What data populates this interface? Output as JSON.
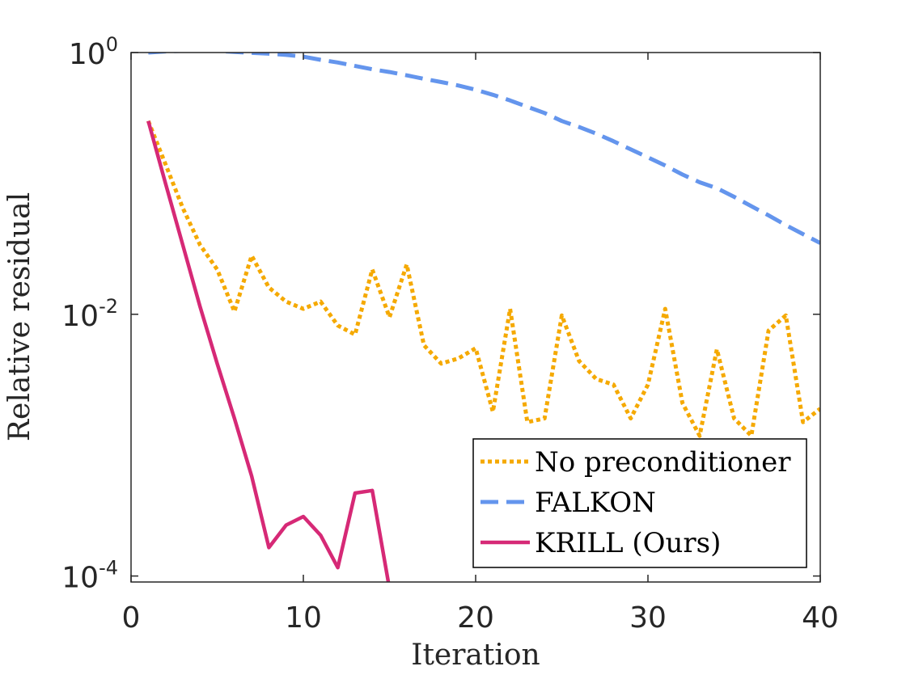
{
  "chart_data": {
    "type": "line",
    "title": "",
    "xlabel": "Iteration",
    "ylabel": "Relative residual",
    "xlim": [
      0,
      40
    ],
    "ylim": [
      9e-05,
      1.0
    ],
    "y_scale": "log",
    "grid": false,
    "legend_position": "bottom-right",
    "x_ticks": [
      0,
      10,
      20,
      30,
      40
    ],
    "x_tick_labels": [
      "0",
      "10",
      "20",
      "30",
      "40"
    ],
    "y_ticks": [
      0.0001,
      0.01,
      1
    ],
    "y_tick_labels": [
      {
        "base": "10",
        "exp": "-4"
      },
      {
        "base": "10",
        "exp": "-2"
      },
      {
        "base": "10",
        "exp": "0"
      }
    ],
    "series": [
      {
        "name": "No preconditioner",
        "color": "#f5a900",
        "style": "dotted",
        "x": [
          1,
          2,
          3,
          4,
          5,
          6,
          7,
          8,
          9,
          10,
          11,
          12,
          13,
          14,
          15,
          16,
          17,
          18,
          19,
          20,
          21,
          22,
          23,
          24,
          25,
          26,
          27,
          28,
          29,
          30,
          31,
          32,
          33,
          34,
          35,
          36,
          37,
          38,
          39,
          40
        ],
        "y": [
          0.3,
          0.14,
          0.065,
          0.034,
          0.022,
          0.0105,
          0.028,
          0.016,
          0.0125,
          0.011,
          0.0125,
          0.0082,
          0.007,
          0.022,
          0.0095,
          0.024,
          0.0058,
          0.0042,
          0.0046,
          0.0055,
          0.0018,
          0.011,
          0.0015,
          0.0016,
          0.0098,
          0.0044,
          0.0032,
          0.0029,
          0.0016,
          0.0029,
          0.011,
          0.0021,
          0.00118,
          0.0054,
          0.0016,
          0.00118,
          0.0075,
          0.0098,
          0.0015,
          0.0019
        ]
      },
      {
        "name": "FALKON",
        "color": "#6495ed",
        "style": "dashed",
        "x": [
          1,
          2,
          3,
          4,
          5,
          6,
          7,
          8,
          9,
          10,
          11,
          12,
          13,
          14,
          15,
          16,
          17,
          18,
          19,
          20,
          21,
          22,
          23,
          24,
          25,
          26,
          27,
          28,
          29,
          30,
          31,
          32,
          33,
          34,
          35,
          36,
          37,
          38,
          39,
          40
        ],
        "y": [
          1.0,
          1.02,
          1.03,
          1.035,
          1.03,
          1.01,
          0.995,
          0.98,
          0.96,
          0.93,
          0.88,
          0.84,
          0.79,
          0.745,
          0.71,
          0.67,
          0.63,
          0.595,
          0.56,
          0.52,
          0.475,
          0.43,
          0.385,
          0.345,
          0.3,
          0.27,
          0.24,
          0.21,
          0.182,
          0.158,
          0.137,
          0.117,
          0.102,
          0.092,
          0.079,
          0.067,
          0.057,
          0.048,
          0.041,
          0.035
        ]
      },
      {
        "name": "KRILL (Ours)",
        "color": "#d62976",
        "style": "solid",
        "x": [
          1,
          2,
          3,
          4,
          5,
          6,
          7,
          8,
          9,
          10,
          11,
          12,
          13,
          14,
          15
        ],
        "y": [
          0.3,
          0.1,
          0.034,
          0.0115,
          0.0042,
          0.0016,
          0.00058,
          0.000165,
          0.000245,
          0.000285,
          0.000205,
          0.000116,
          0.00043,
          0.00045,
          8e-05
        ]
      }
    ]
  }
}
